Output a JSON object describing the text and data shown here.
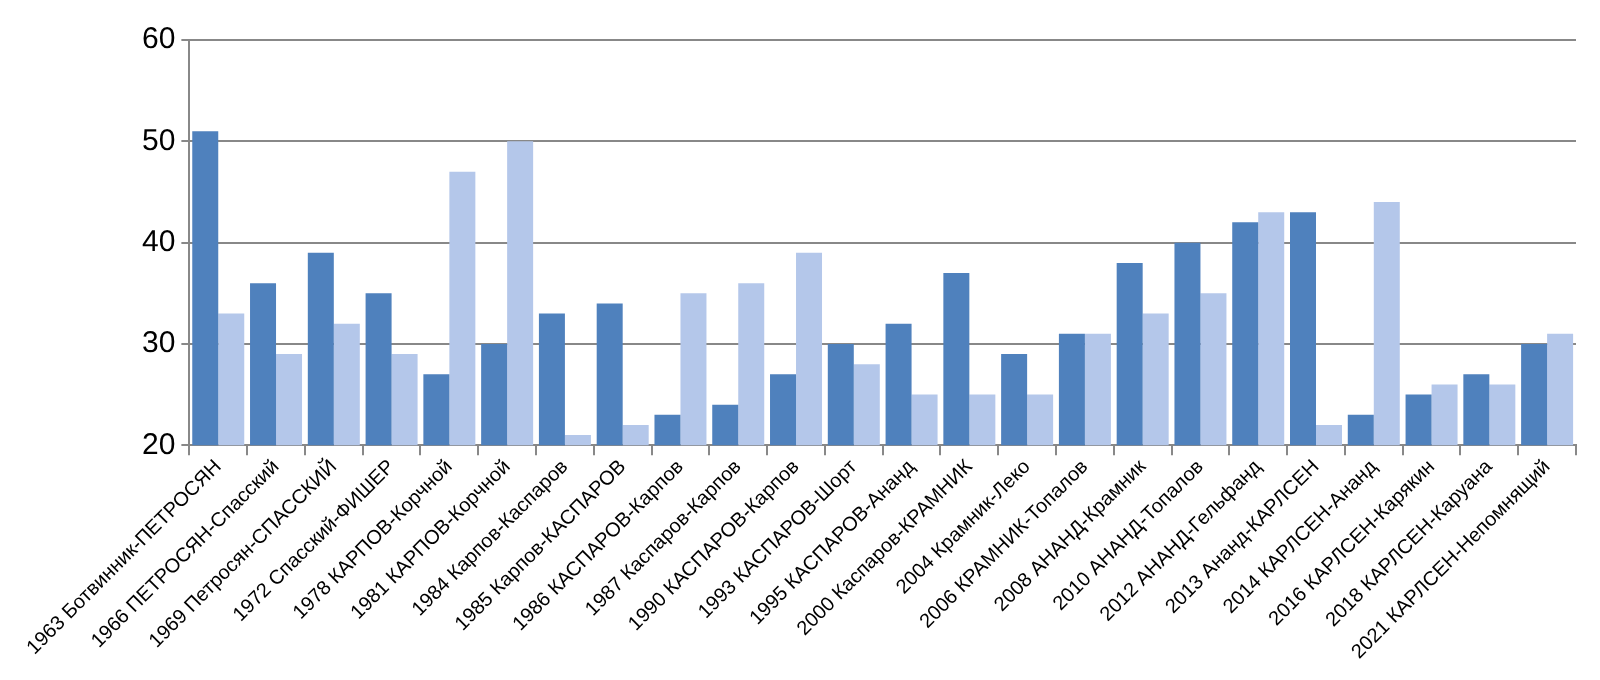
{
  "chart_data": {
    "type": "bar",
    "categories": [
      "1963 Ботвинник-ПЕТРОСЯН",
      "1966 ПЕТРОСЯН-Спасский",
      "1969 Петросян-СПАССКИЙ",
      "1972 Спасский-ФИШЕР",
      "1978 КАРПОВ-Корчной",
      "1981 КАРПОВ-Корчной",
      "1984 Карпов-Каспаров",
      "1985 Карпов-КАСПАРОВ",
      "1986 КАСПАРОВ-Карпов",
      "1987 Каспаров-Карпов",
      "1990 КАСПАРОВ-Карпов",
      "1993 КАСПАРОВ-Шорт",
      "1995 КАСПАРОВ-Ананд",
      "2000 Каспаров-КРАМНИК",
      "2004 Крамник-Леко",
      "2006 КРАМНИК-Топалов",
      "2008 АНАНД-Крамник",
      "2010 АНАНД-Топалов",
      "2012 АНАНД-Гельфанд",
      "2013 Ананд-КАРЛСЕН",
      "2014 КАРЛСЕН-Ананд",
      "2016 КАРЛСЕН-Карякин",
      "2018 КАРЛСЕН-Каруана",
      "2021 КАРЛСЕН-Непомнящий"
    ],
    "series": [
      {
        "color": "#4f81bd",
        "values": [
          51,
          36,
          39,
          35,
          27,
          30,
          33,
          34,
          23,
          24,
          27,
          30,
          32,
          37,
          29,
          31,
          38,
          40,
          42,
          43,
          23,
          25,
          27,
          30
        ]
      },
      {
        "color": "#b4c7ea",
        "values": [
          33,
          29,
          32,
          29,
          47,
          50,
          21,
          22,
          35,
          36,
          39,
          28,
          25,
          25,
          25,
          31,
          33,
          35,
          43,
          22,
          44,
          26,
          26,
          31
        ]
      }
    ],
    "ylim": [
      20,
      60
    ],
    "yticks": [
      20,
      30,
      40,
      50,
      60
    ],
    "grid": "y",
    "legend": false
  }
}
